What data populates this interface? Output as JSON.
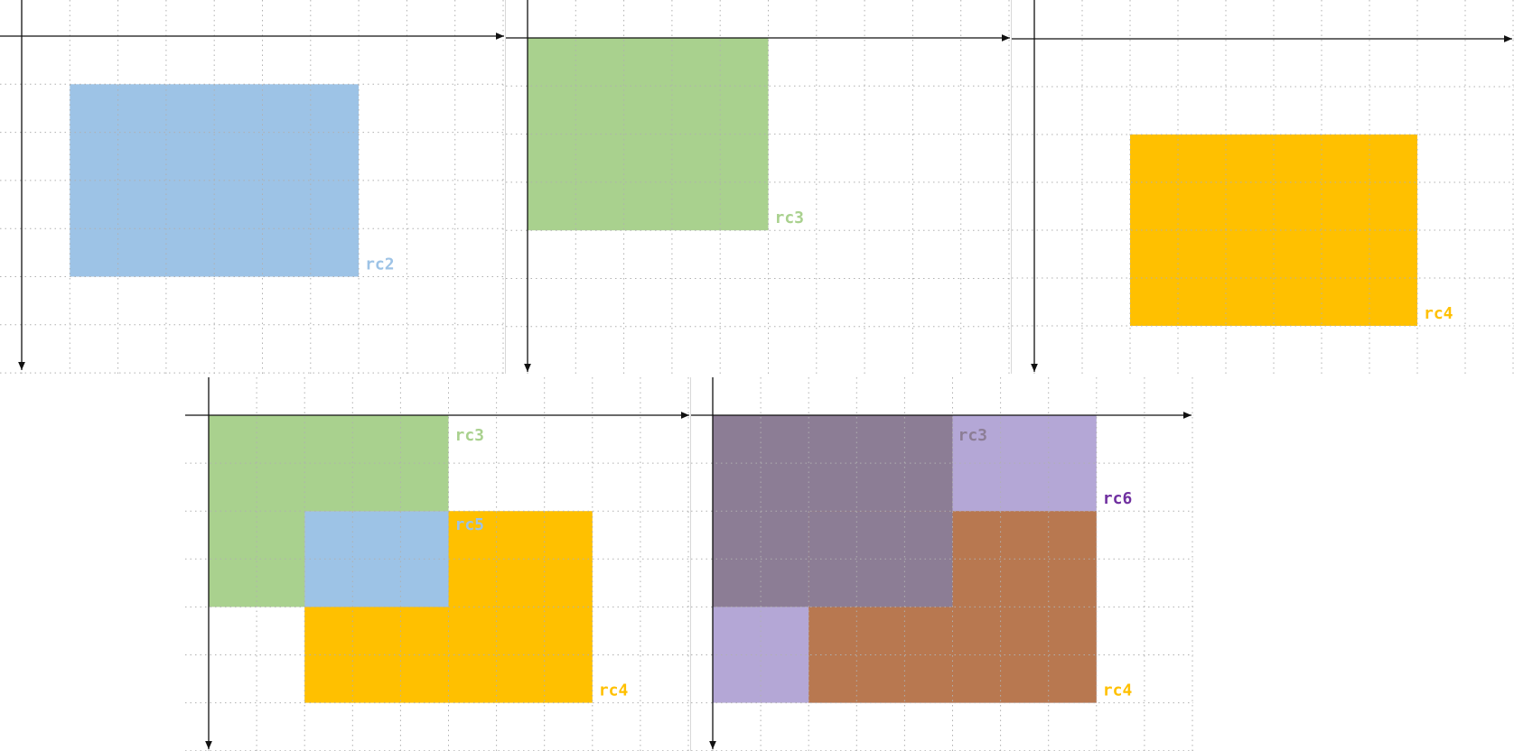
{
  "colors": {
    "blue": "#9dc3e6",
    "green": "#a9d18e",
    "amber": "#ffc000",
    "lavender": "#b4a7d6",
    "mauve_gray": "#8c7d95",
    "brown": "#b87850",
    "label_purple": "#7030a0",
    "axis": "#111111",
    "grid": "#b0b0b0"
  },
  "panels": [
    {
      "id": "panel-rc2",
      "rects": [
        {
          "name": "rc2",
          "label": "rc2",
          "x0": 1,
          "y0": 1,
          "x1": 7,
          "y1": 5,
          "fill": "blue",
          "label_color": "blue"
        }
      ]
    },
    {
      "id": "panel-rc3",
      "rects": [
        {
          "name": "rc3",
          "label": "rc3",
          "x0": 0,
          "y0": 0,
          "x1": 5,
          "y1": 4,
          "fill": "green",
          "label_color": "green"
        }
      ]
    },
    {
      "id": "panel-rc4",
      "rects": [
        {
          "name": "rc4",
          "label": "rc4",
          "x0": 2,
          "y0": 2,
          "x1": 8,
          "y1": 6,
          "fill": "amber",
          "label_color": "amber"
        }
      ]
    },
    {
      "id": "panel-rc5",
      "rects": [
        {
          "name": "rc3",
          "label": "rc3",
          "x0": 0,
          "y0": 0,
          "x1": 5,
          "y1": 4,
          "fill": "green",
          "label_color": "green"
        },
        {
          "name": "rc4",
          "label": "rc4",
          "x0": 2,
          "y0": 2,
          "x1": 8,
          "y1": 6,
          "fill": "amber",
          "label_color": "amber"
        },
        {
          "name": "rc5",
          "label": "rc5",
          "x0": 2,
          "y0": 2,
          "x1": 5,
          "y1": 4,
          "fill": "blue",
          "label_color": "blue"
        }
      ]
    },
    {
      "id": "panel-rc6",
      "rects": [
        {
          "name": "rc6",
          "label": "rc6",
          "x0": 0,
          "y0": 0,
          "x1": 8,
          "y1": 6,
          "fill": "lavender",
          "label_color": "label_purple"
        },
        {
          "name": "rc3",
          "label": "rc3",
          "x0": 0,
          "y0": 0,
          "x1": 5,
          "y1": 4,
          "fill": "mauve_gray",
          "label_color": "mauve_gray"
        },
        {
          "name": "rc4",
          "label": "rc4",
          "x0": 2,
          "y0": 2,
          "x1": 8,
          "y1": 6,
          "fill": "brown",
          "label_color": "amber"
        },
        {
          "name": "overlap",
          "label": "",
          "x0": 2,
          "y0": 2,
          "x1": 5,
          "y1": 4,
          "fill": "mauve_gray",
          "label_color": "mauve_gray"
        }
      ]
    }
  ]
}
